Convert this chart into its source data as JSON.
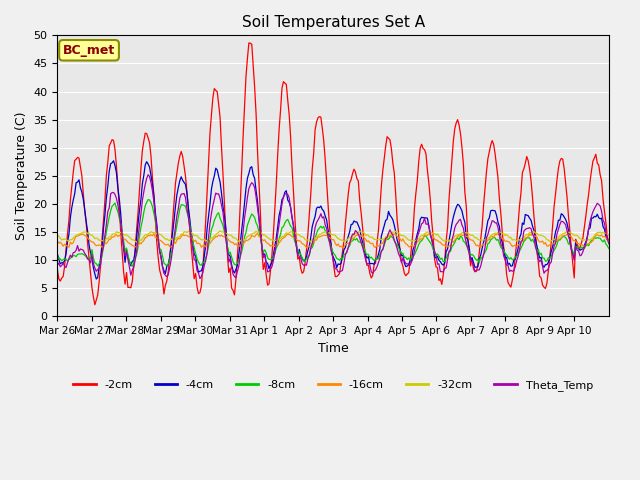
{
  "title": "Soil Temperatures Set A",
  "xlabel": "Time",
  "ylabel": "Soil Temperature (C)",
  "ylim": [
    0,
    50
  ],
  "yticks": [
    0,
    5,
    10,
    15,
    20,
    25,
    30,
    35,
    40,
    45,
    50
  ],
  "annotation": "BC_met",
  "series_colors": {
    "-2cm": "#ff0000",
    "-4cm": "#0000cc",
    "-8cm": "#00cc00",
    "-16cm": "#ff8800",
    "-32cm": "#cccc00",
    "Theta_Temp": "#aa00aa"
  },
  "x_tick_positions": [
    0,
    1,
    2,
    3,
    4,
    5,
    6,
    7,
    8,
    9,
    10,
    11,
    12,
    13,
    14,
    15
  ],
  "x_labels": [
    "Mar 26",
    "Mar 27",
    "Mar 28",
    "Mar 29",
    "Mar 30",
    "Mar 31",
    "Apr 1",
    "Apr 2",
    "Apr 3",
    "Apr 4",
    "Apr 5",
    "Apr 6",
    "Apr 7",
    "Apr 8",
    "Apr 9",
    "Apr 10"
  ],
  "num_points": 384,
  "num_days": 16
}
